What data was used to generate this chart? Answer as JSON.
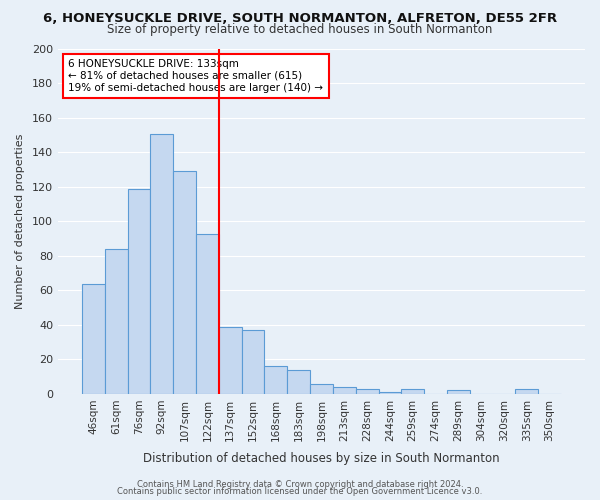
{
  "title": "6, HONEYSUCKLE DRIVE, SOUTH NORMANTON, ALFRETON, DE55 2FR",
  "subtitle": "Size of property relative to detached houses in South Normanton",
  "xlabel": "Distribution of detached houses by size in South Normanton",
  "ylabel": "Number of detached properties",
  "bin_labels": [
    "46sqm",
    "61sqm",
    "76sqm",
    "92sqm",
    "107sqm",
    "122sqm",
    "137sqm",
    "152sqm",
    "168sqm",
    "183sqm",
    "198sqm",
    "213sqm",
    "228sqm",
    "244sqm",
    "259sqm",
    "274sqm",
    "289sqm",
    "304sqm",
    "320sqm",
    "335sqm",
    "350sqm"
  ],
  "bar_heights": [
    64,
    84,
    119,
    151,
    129,
    93,
    39,
    37,
    16,
    14,
    6,
    4,
    3,
    1,
    3,
    0,
    2,
    0,
    0,
    3,
    0
  ],
  "bar_color": "#c5d8f0",
  "bar_edge_color": "#5b9bd5",
  "vline_color": "red",
  "ylim": [
    0,
    200
  ],
  "yticks": [
    0,
    20,
    40,
    60,
    80,
    100,
    120,
    140,
    160,
    180,
    200
  ],
  "annotation_title": "6 HONEYSUCKLE DRIVE: 133sqm",
  "annotation_line1": "← 81% of detached houses are smaller (615)",
  "annotation_line2": "19% of semi-detached houses are larger (140) →",
  "annotation_box_color": "white",
  "annotation_box_edge": "red",
  "footer1": "Contains HM Land Registry data © Crown copyright and database right 2024.",
  "footer2": "Contains public sector information licensed under the Open Government Licence v3.0.",
  "background_color": "#e8f0f8",
  "plot_background": "#e8f0f8"
}
